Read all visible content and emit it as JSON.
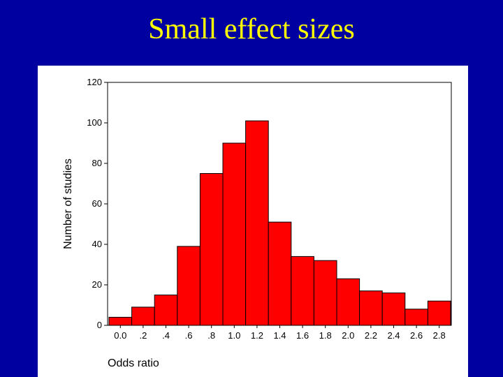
{
  "slide": {
    "title": "Small effect sizes"
  },
  "colors": {
    "background": "#0000a0",
    "title": "#ffff00",
    "bar_fill": "#ff0000",
    "bar_stroke": "#000000",
    "panel": "#ffffff"
  },
  "chart_data": {
    "type": "bar",
    "title": "",
    "xlabel": "Odds ratio",
    "ylabel": "Number of studies",
    "categories": [
      "0.0",
      ".2",
      ".4",
      ".6",
      ".8",
      "1.0",
      "1.2",
      "1.4",
      "1.6",
      "1.8",
      "2.0",
      "2.2",
      "2.4",
      "2.6",
      "2.8"
    ],
    "values": [
      4,
      9,
      15,
      39,
      75,
      90,
      101,
      51,
      34,
      32,
      23,
      17,
      16,
      8,
      12
    ],
    "ylim": [
      0,
      120
    ],
    "yticks": [
      "0",
      "20",
      "40",
      "60",
      "80",
      "100",
      "120"
    ],
    "grid": false,
    "legend": "none"
  }
}
